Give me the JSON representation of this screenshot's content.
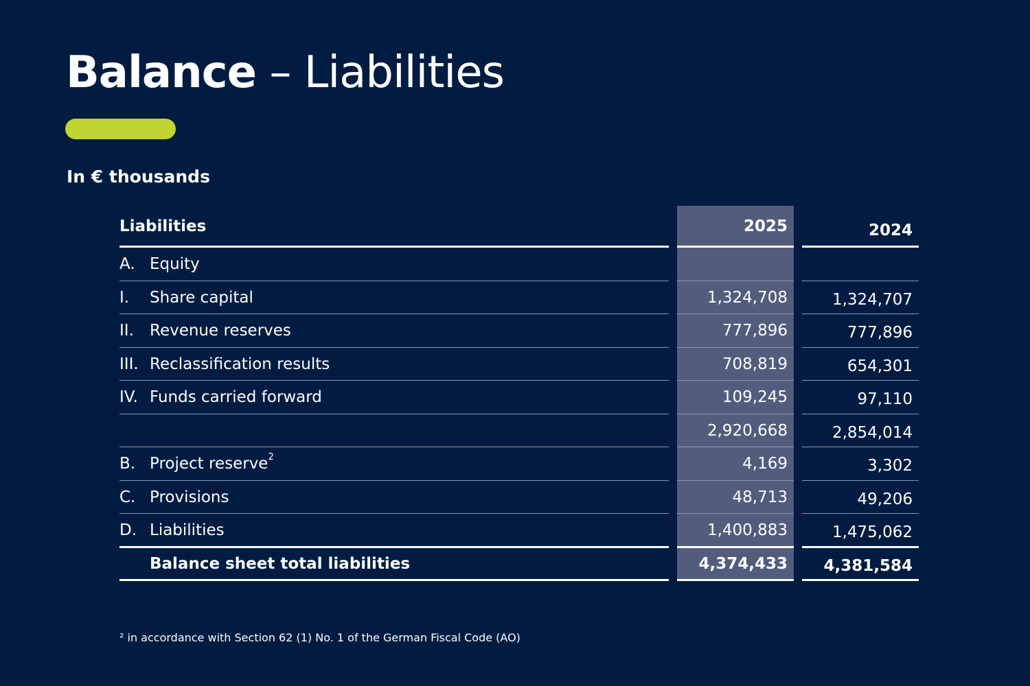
{
  "title_bold": "Balance",
  "title_rest": " – Liabilities",
  "unit_label": "In € thousands",
  "colors": {
    "background": "#011c40",
    "accent": "#c1d532",
    "highlight_column": "#525d7d"
  },
  "table": {
    "header": {
      "label": "Liabilities",
      "col_2025": "2025",
      "col_2024": "2024"
    },
    "rows": [
      {
        "num": "A.",
        "label": "Equity",
        "sup": "",
        "v2025": "",
        "v2024": ""
      },
      {
        "num": "I.",
        "label": "Share capital",
        "sup": "",
        "v2025": "1,324,708",
        "v2024": "1,324,707"
      },
      {
        "num": "II.",
        "label": "Revenue reserves",
        "sup": "",
        "v2025": "777,896",
        "v2024": "777,896"
      },
      {
        "num": "III.",
        "label": "Reclassification results",
        "sup": "",
        "v2025": "708,819",
        "v2024": "654,301"
      },
      {
        "num": "IV.",
        "label": "Funds carried forward",
        "sup": "",
        "v2025": "109,245",
        "v2024": "97,110"
      },
      {
        "num": "",
        "label": "",
        "sup": "",
        "v2025": "2,920,668",
        "v2024": "2,854,014"
      },
      {
        "num": "B.",
        "label": "Project reserve",
        "sup": "2",
        "v2025": "4,169",
        "v2024": "3,302"
      },
      {
        "num": "C.",
        "label": "Provisions",
        "sup": "",
        "v2025": "48,713",
        "v2024": "49,206"
      },
      {
        "num": "D.",
        "label": "Liabilities",
        "sup": "",
        "v2025": "1,400,883",
        "v2024": "1,475,062"
      }
    ],
    "total": {
      "label": "Balance sheet total liabilities",
      "v2025": "4,374,433",
      "v2024": "4,381,584"
    }
  },
  "footnote": "² in accordance with Section 62 (1) No. 1 of the German Fiscal Code (AO)"
}
